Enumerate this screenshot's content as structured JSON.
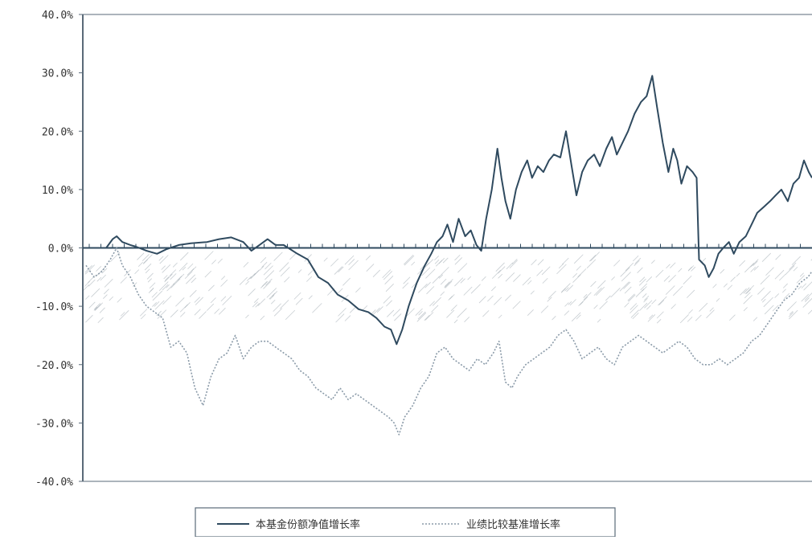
{
  "chart_data": {
    "type": "line",
    "title": "",
    "xlabel": "",
    "ylabel": "",
    "ylim": [
      -40,
      40
    ],
    "y_ticks": [
      "40.0%",
      "30.0%",
      "20.0%",
      "10.0%",
      "0.0%",
      "-10.0%",
      "-20.0%",
      "-30.0%",
      "-40.0%"
    ],
    "y_tick_values": [
      40,
      30,
      20,
      10,
      0,
      -10,
      -20,
      -30,
      -40
    ],
    "grid": false,
    "legend_position": "bottom",
    "series": [
      {
        "name": "本基金份额净值增长率",
        "color": "#2f4a5f",
        "style": "solid",
        "points": [
          [
            0,
            0
          ],
          [
            25,
            0
          ],
          [
            33,
            1.5
          ],
          [
            38,
            2
          ],
          [
            45,
            1
          ],
          [
            55,
            0.5
          ],
          [
            62,
            0.2
          ],
          [
            75,
            -0.5
          ],
          [
            88,
            -1
          ],
          [
            100,
            -0.2
          ],
          [
            115,
            0.5
          ],
          [
            130,
            0.8
          ],
          [
            150,
            1
          ],
          [
            165,
            1.5
          ],
          [
            180,
            1.8
          ],
          [
            195,
            1
          ],
          [
            205,
            -0.5
          ],
          [
            215,
            0.5
          ],
          [
            225,
            1.5
          ],
          [
            235,
            0.5
          ],
          [
            245,
            0.5
          ],
          [
            262,
            -1
          ],
          [
            275,
            -2
          ],
          [
            288,
            -5
          ],
          [
            300,
            -6
          ],
          [
            312,
            -8
          ],
          [
            325,
            -9
          ],
          [
            338,
            -10.5
          ],
          [
            350,
            -11
          ],
          [
            360,
            -12
          ],
          [
            370,
            -13.5
          ],
          [
            378,
            -14
          ],
          [
            385,
            -16.5
          ],
          [
            392,
            -14
          ],
          [
            400,
            -10
          ],
          [
            410,
            -6
          ],
          [
            420,
            -3
          ],
          [
            428,
            -1
          ],
          [
            435,
            1
          ],
          [
            442,
            2
          ],
          [
            448,
            4
          ],
          [
            455,
            1
          ],
          [
            462,
            5
          ],
          [
            470,
            2
          ],
          [
            477,
            3
          ],
          [
            484,
            0.5
          ],
          [
            490,
            -0.5
          ],
          [
            496,
            5
          ],
          [
            503,
            10
          ],
          [
            510,
            17
          ],
          [
            515,
            12
          ],
          [
            520,
            8
          ],
          [
            526,
            5
          ],
          [
            533,
            10
          ],
          [
            540,
            13
          ],
          [
            547,
            15
          ],
          [
            553,
            12
          ],
          [
            560,
            14
          ],
          [
            567,
            13
          ],
          [
            574,
            15
          ],
          [
            580,
            16
          ],
          [
            588,
            15.5
          ],
          [
            595,
            20
          ],
          [
            602,
            14
          ],
          [
            608,
            9
          ],
          [
            615,
            13
          ],
          [
            622,
            15
          ],
          [
            630,
            16
          ],
          [
            637,
            14
          ],
          [
            645,
            17
          ],
          [
            652,
            19
          ],
          [
            658,
            16
          ],
          [
            665,
            18
          ],
          [
            672,
            20
          ],
          [
            680,
            23
          ],
          [
            688,
            25
          ],
          [
            695,
            26
          ],
          [
            702,
            29.5
          ],
          [
            708,
            24
          ],
          [
            715,
            18
          ],
          [
            722,
            13
          ],
          [
            728,
            17
          ],
          [
            733,
            15
          ],
          [
            738,
            11
          ],
          [
            745,
            14
          ],
          [
            752,
            13
          ],
          [
            757,
            12
          ],
          [
            760,
            -2
          ],
          [
            767,
            -3
          ],
          [
            772,
            -5
          ],
          [
            778,
            -3.5
          ],
          [
            784,
            -1
          ],
          [
            790,
            0
          ],
          [
            797,
            1
          ],
          [
            803,
            -1
          ],
          [
            810,
            1
          ],
          [
            818,
            2
          ],
          [
            825,
            4
          ],
          [
            832,
            6
          ],
          [
            840,
            7
          ],
          [
            848,
            8
          ],
          [
            855,
            9
          ],
          [
            862,
            10
          ],
          [
            870,
            8
          ],
          [
            877,
            11
          ],
          [
            884,
            12
          ],
          [
            890,
            15
          ],
          [
            896,
            13
          ],
          [
            900,
            12
          ]
        ]
      },
      {
        "name": "业绩比较基准增长率",
        "color": "#8a9aa8",
        "style": "dotted",
        "points": [
          [
            0,
            -3
          ],
          [
            10,
            -5
          ],
          [
            20,
            -4
          ],
          [
            30,
            -2
          ],
          [
            38,
            0
          ],
          [
            45,
            -3
          ],
          [
            55,
            -5
          ],
          [
            65,
            -8
          ],
          [
            75,
            -10
          ],
          [
            85,
            -11
          ],
          [
            95,
            -12
          ],
          [
            105,
            -17
          ],
          [
            115,
            -16
          ],
          [
            125,
            -18
          ],
          [
            135,
            -24
          ],
          [
            145,
            -27
          ],
          [
            155,
            -22
          ],
          [
            165,
            -19
          ],
          [
            175,
            -18
          ],
          [
            185,
            -15
          ],
          [
            195,
            -19
          ],
          [
            205,
            -17
          ],
          [
            215,
            -16
          ],
          [
            225,
            -16
          ],
          [
            235,
            -17
          ],
          [
            245,
            -18
          ],
          [
            255,
            -19
          ],
          [
            265,
            -21
          ],
          [
            275,
            -22
          ],
          [
            285,
            -24
          ],
          [
            295,
            -25
          ],
          [
            305,
            -26
          ],
          [
            315,
            -24
          ],
          [
            325,
            -26
          ],
          [
            335,
            -25
          ],
          [
            345,
            -26
          ],
          [
            355,
            -27
          ],
          [
            365,
            -28
          ],
          [
            375,
            -29
          ],
          [
            382,
            -30
          ],
          [
            388,
            -32
          ],
          [
            395,
            -29
          ],
          [
            405,
            -27
          ],
          [
            415,
            -24
          ],
          [
            425,
            -22
          ],
          [
            435,
            -18
          ],
          [
            445,
            -17
          ],
          [
            455,
            -19
          ],
          [
            465,
            -20
          ],
          [
            475,
            -21
          ],
          [
            485,
            -19
          ],
          [
            495,
            -20
          ],
          [
            505,
            -18
          ],
          [
            512,
            -16
          ],
          [
            520,
            -23
          ],
          [
            528,
            -24
          ],
          [
            535,
            -22
          ],
          [
            545,
            -20
          ],
          [
            555,
            -19
          ],
          [
            565,
            -18
          ],
          [
            575,
            -17
          ],
          [
            585,
            -15
          ],
          [
            595,
            -14
          ],
          [
            605,
            -16
          ],
          [
            615,
            -19
          ],
          [
            625,
            -18
          ],
          [
            635,
            -17
          ],
          [
            645,
            -19
          ],
          [
            655,
            -20
          ],
          [
            665,
            -17
          ],
          [
            675,
            -16
          ],
          [
            685,
            -15
          ],
          [
            695,
            -16
          ],
          [
            705,
            -17
          ],
          [
            715,
            -18
          ],
          [
            725,
            -17
          ],
          [
            735,
            -16
          ],
          [
            745,
            -17
          ],
          [
            755,
            -19
          ],
          [
            765,
            -20
          ],
          [
            775,
            -20
          ],
          [
            785,
            -19
          ],
          [
            795,
            -20
          ],
          [
            805,
            -19
          ],
          [
            815,
            -18
          ],
          [
            825,
            -16
          ],
          [
            835,
            -15
          ],
          [
            845,
            -13
          ],
          [
            855,
            -11
          ],
          [
            865,
            -9
          ],
          [
            875,
            -8
          ],
          [
            885,
            -6
          ],
          [
            895,
            -5
          ],
          [
            900,
            -4
          ]
        ]
      }
    ],
    "noise_band": {
      "top": -2,
      "bottom": -13,
      "color": "#9aa5ad"
    }
  }
}
